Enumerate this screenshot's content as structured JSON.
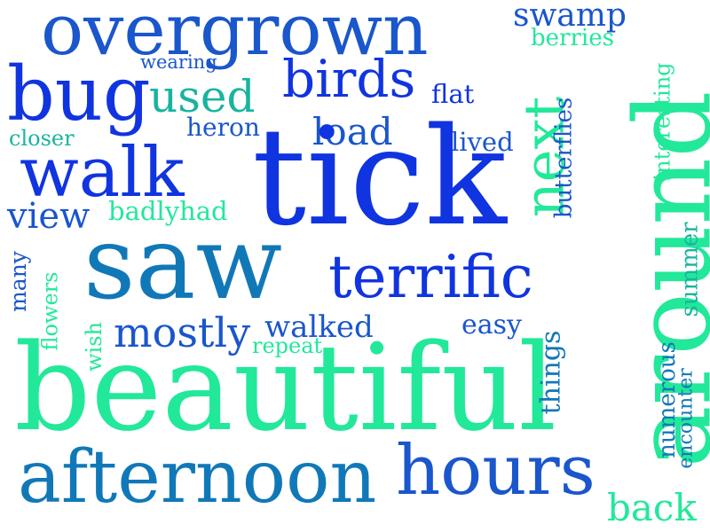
{
  "word_cloud": {
    "colors": {
      "background": "#ffffff",
      "blue": "#1034e0",
      "royal": "#1a56cc",
      "teal": "#1178b8",
      "aqua": "#18b4a0",
      "green": "#22e89a"
    },
    "words": [
      {
        "text": "overgrown",
        "color": "#1a56cc",
        "vertical": false
      },
      {
        "text": "swamp",
        "color": "#1a56cc",
        "vertical": false
      },
      {
        "text": "berries",
        "color": "#22e89a",
        "vertical": false
      },
      {
        "text": "wearing",
        "color": "#1a56cc",
        "vertical": false
      },
      {
        "text": "bug",
        "color": "#1034e0",
        "vertical": false
      },
      {
        "text": "used",
        "color": "#18b4a0",
        "vertical": false
      },
      {
        "text": "birds",
        "color": "#1034e0",
        "vertical": false
      },
      {
        "text": "flat",
        "color": "#1034e0",
        "vertical": false
      },
      {
        "text": "closer",
        "color": "#18b4a0",
        "vertical": false
      },
      {
        "text": "heron",
        "color": "#1a56cc",
        "vertical": false
      },
      {
        "text": "load",
        "color": "#1a56cc",
        "vertical": false
      },
      {
        "text": "lived",
        "color": "#1a56cc",
        "vertical": false
      },
      {
        "text": "walk",
        "color": "#1034e0",
        "vertical": false
      },
      {
        "text": "tick",
        "color": "#1034e0",
        "vertical": false
      },
      {
        "text": "view",
        "color": "#1a56cc",
        "vertical": false
      },
      {
        "text": "badlyhad",
        "color": "#22e89a",
        "vertical": false
      },
      {
        "text": "saw",
        "color": "#1178b8",
        "vertical": false
      },
      {
        "text": "terrific",
        "color": "#1034e0",
        "vertical": false
      },
      {
        "text": "mostly",
        "color": "#1a56cc",
        "vertical": false
      },
      {
        "text": "walked",
        "color": "#1a56cc",
        "vertical": false
      },
      {
        "text": "easy",
        "color": "#1a56cc",
        "vertical": false
      },
      {
        "text": "repeat",
        "color": "#22e89a",
        "vertical": false
      },
      {
        "text": "beautiful",
        "color": "#22e89a",
        "vertical": false
      },
      {
        "text": "afternoon",
        "color": "#1178b8",
        "vertical": false
      },
      {
        "text": "hours",
        "color": "#1a56cc",
        "vertical": false
      },
      {
        "text": "back",
        "color": "#22e89a",
        "vertical": false
      },
      {
        "text": "next",
        "color": "#22e89a",
        "vertical": true
      },
      {
        "text": "around",
        "color": "#22e89a",
        "vertical": true
      },
      {
        "text": "butterflies",
        "color": "#1a56cc",
        "vertical": true
      },
      {
        "text": "interesting",
        "color": "#22e89a",
        "vertical": true
      },
      {
        "text": "summer",
        "color": "#18b4a0",
        "vertical": true
      },
      {
        "text": "many",
        "color": "#1a56cc",
        "vertical": true
      },
      {
        "text": "flowers",
        "color": "#22e89a",
        "vertical": true
      },
      {
        "text": "wish",
        "color": "#22e89a",
        "vertical": true
      },
      {
        "text": "things",
        "color": "#1178b8",
        "vertical": true
      },
      {
        "text": "numerous",
        "color": "#1178b8",
        "vertical": true
      },
      {
        "text": "encounter",
        "color": "#1178b8",
        "vertical": true
      }
    ]
  }
}
